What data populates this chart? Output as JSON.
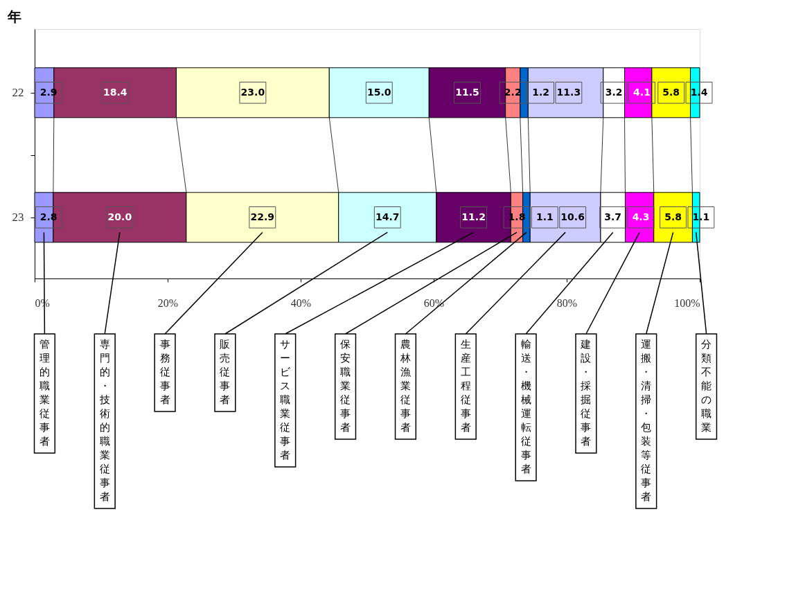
{
  "chart_data": {
    "type": "bar",
    "orientation": "horizontal",
    "stacked": true,
    "ylabel": "年",
    "categories": [
      "22",
      "23"
    ],
    "series": [
      {
        "name": "管理的職業従事者",
        "color": "#9999ff",
        "values": [
          2.9,
          2.8
        ],
        "value_labels": [
          "2.9",
          "2.8"
        ]
      },
      {
        "name": "専門的・技術的職業従事者",
        "color": "#993366",
        "values": [
          18.4,
          20.0
        ],
        "value_labels": [
          "18.4",
          "20.0"
        ]
      },
      {
        "name": "事務従事者",
        "color": "#ffffcc",
        "values": [
          23.0,
          22.9
        ],
        "value_labels": [
          "23.0",
          "22.9"
        ]
      },
      {
        "name": "販売従事者",
        "color": "#ccffff",
        "values": [
          15.0,
          14.7
        ],
        "value_labels": [
          "15.0",
          "14.7"
        ]
      },
      {
        "name": "サービス職業従事者",
        "color": "#660066",
        "values": [
          11.5,
          11.2
        ],
        "value_labels": [
          "11.5",
          "11.2"
        ]
      },
      {
        "name": "保安職業従事者",
        "color": "#ff8080",
        "values": [
          2.2,
          1.8
        ],
        "value_labels": [
          "2.2",
          "1.8"
        ]
      },
      {
        "name": "農林漁業従事者",
        "color": "#0066cc",
        "values": [
          1.2,
          1.1
        ],
        "value_labels": [
          "1.2",
          "1.1"
        ]
      },
      {
        "name": "生産工程従事者",
        "color": "#ccccff",
        "values": [
          11.3,
          10.6
        ],
        "value_labels": [
          "11.3",
          "10.6"
        ]
      },
      {
        "name": "輸送・機械運転従事者",
        "color": "#ffffff",
        "values": [
          3.2,
          3.7
        ],
        "value_labels": [
          "3.2",
          "3.7"
        ]
      },
      {
        "name": "建設・採掘従事者",
        "color": "#ff00ff",
        "values": [
          4.1,
          4.3
        ],
        "value_labels": [
          "4.1",
          "4.3"
        ]
      },
      {
        "name": "運搬・清掃・包装等従事者",
        "color": "#ffff00",
        "values": [
          5.8,
          5.8
        ],
        "value_labels": [
          "5.8",
          "5.8"
        ]
      },
      {
        "name": "分類不能の職業",
        "color": "#00ffff",
        "values": [
          1.4,
          1.1
        ],
        "value_labels": [
          "1.4",
          "1.1"
        ]
      }
    ],
    "xlim": [
      0,
      100
    ],
    "xticks": [
      {
        "value": 0,
        "label": "0%"
      },
      {
        "value": 20,
        "label": "20%"
      },
      {
        "value": 40,
        "label": "40%"
      },
      {
        "value": 60,
        "label": "60%"
      },
      {
        "value": 80,
        "label": "80%"
      },
      {
        "value": 100,
        "label": "100%"
      }
    ],
    "grid": false
  }
}
